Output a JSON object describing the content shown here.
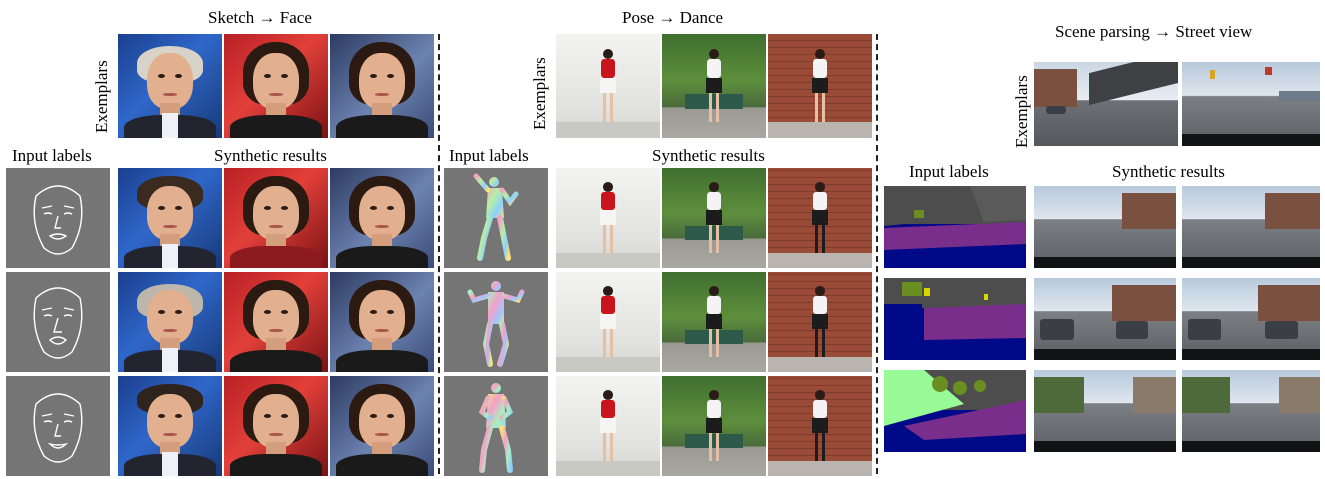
{
  "sections": {
    "face": {
      "title": "Sketch → Face",
      "exemplars_label": "Exemplars",
      "input_label": "Input labels",
      "results_label": "Synthetic results"
    },
    "dance": {
      "title": "Pose → Dance",
      "exemplars_label": "Exemplars",
      "input_label": "Input labels",
      "results_label": "Synthetic results"
    },
    "street": {
      "title": "Scene parsing → Street view",
      "exemplars_label": "Exemplars",
      "input_label": "Input labels",
      "results_label": "Synthetic results"
    }
  },
  "colors": {
    "sketch_bg": "#757575",
    "pose_bg": "#757575",
    "segmentation_road": "#7a2e8c",
    "segmentation_sky": "#4d4d4d",
    "segmentation_vehicle": "#000a88",
    "segmentation_vegetation": "#6b8e23",
    "segmentation_terrain": "#98fb98"
  }
}
